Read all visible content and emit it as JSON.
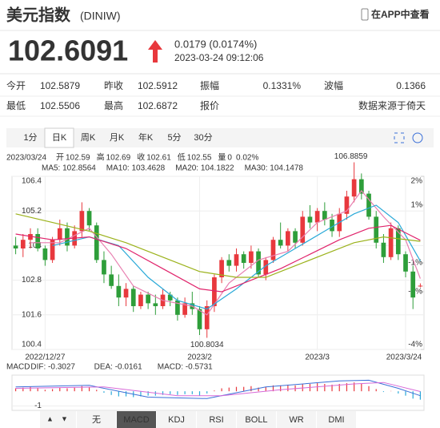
{
  "header": {
    "title": "美元指数",
    "code": "(DINIW)",
    "app_link": "在APP中查看"
  },
  "quote": {
    "price": "102.6091",
    "change": "0.0179 (0.0174%)",
    "time": "2023-03-24 09:12:06"
  },
  "stats": {
    "rows": [
      [
        "今开",
        "102.5879",
        "昨收",
        "102.5912",
        "振幅",
        "0.1331%",
        "波幅",
        "0.1366"
      ],
      [
        "最低",
        "102.5506",
        "最高",
        "102.6872",
        "报价",
        "数据来源于倚天"
      ]
    ]
  },
  "tabs": {
    "items": [
      "1分",
      "日K",
      "周K",
      "月K",
      "年K",
      "5分",
      "30分"
    ],
    "active": 1
  },
  "indicator_tabs": {
    "items": [
      "无",
      "MACD",
      "KDJ",
      "RSI",
      "BOLL",
      "WR",
      "DMI"
    ],
    "active": 1
  },
  "chart_data": {
    "type": "candlestick",
    "info": {
      "date": "2023/03/24",
      "items": [
        {
          "label": "开",
          "value": "102.59",
          "color": "#2e9e3a"
        },
        {
          "label": "高",
          "value": "102.69",
          "color": "#e8383d"
        },
        {
          "label": "收",
          "value": "102.61",
          "color": "#e8383d"
        },
        {
          "label": "低",
          "value": "102.55",
          "color": "#2e9e3a"
        },
        {
          "label": "量",
          "value": "0",
          "color": "#333333"
        }
      ],
      "change": "0.02%"
    },
    "up_color": "#e8383d",
    "down_color": "#2e9e3a",
    "open": [
      104.0,
      103.9,
      104.2,
      104.4,
      103.9,
      103.5,
      104.2,
      104.6,
      104.0,
      104.5,
      105.2,
      104.7,
      103.5,
      103.0,
      102.6,
      102.2,
      102.5,
      101.9,
      102.3,
      102.0,
      101.9,
      102.3,
      102.1,
      101.6,
      102.0,
      101.8,
      101.1,
      101.9,
      102.9,
      103.5,
      103.3,
      103.7,
      103.4,
      103.8,
      103.0,
      103.5,
      104.2,
      104.0,
      104.5,
      104.1,
      105.0,
      104.8,
      105.2,
      104.9,
      104.5,
      105.1,
      105.7,
      106.3,
      105.8,
      105.0,
      104.1,
      103.6,
      104.6,
      103.7,
      103.1,
      102.59
    ],
    "high": [
      104.3,
      104.4,
      104.6,
      104.6,
      104.0,
      104.3,
      104.9,
      104.8,
      104.7,
      105.5,
      105.3,
      104.8,
      103.8,
      103.3,
      103.0,
      102.7,
      102.6,
      102.4,
      102.4,
      102.3,
      102.5,
      102.4,
      102.2,
      102.2,
      102.4,
      101.9,
      102.1,
      103.0,
      103.6,
      103.7,
      103.9,
      103.8,
      104.0,
      103.9,
      103.6,
      104.3,
      104.8,
      104.6,
      104.6,
      105.2,
      105.4,
      105.3,
      105.5,
      105.1,
      105.3,
      105.9,
      106.8859,
      106.5,
      105.9,
      105.2,
      104.4,
      104.8,
      104.7,
      103.8,
      103.3,
      102.69
    ],
    "low": [
      103.7,
      103.6,
      103.9,
      103.8,
      103.3,
      103.4,
      104.0,
      103.8,
      103.9,
      104.3,
      104.5,
      103.4,
      102.7,
      102.5,
      101.9,
      101.9,
      101.7,
      101.8,
      101.8,
      101.6,
      101.8,
      101.9,
      101.4,
      101.5,
      101.6,
      100.9,
      100.8034,
      101.7,
      102.7,
      103.1,
      103.1,
      103.2,
      103.2,
      102.9,
      102.8,
      103.4,
      103.9,
      103.8,
      103.9,
      104.0,
      104.6,
      104.5,
      104.7,
      104.3,
      104.3,
      104.9,
      105.5,
      105.6,
      104.9,
      103.9,
      103.4,
      103.5,
      103.5,
      102.9,
      101.8,
      102.55
    ],
    "close": [
      103.9,
      104.2,
      104.4,
      103.9,
      103.5,
      104.2,
      104.6,
      104.0,
      104.5,
      105.2,
      104.7,
      103.5,
      103.0,
      102.6,
      102.2,
      102.5,
      101.9,
      102.3,
      102.0,
      101.9,
      102.3,
      102.1,
      101.6,
      102.0,
      101.8,
      101.1,
      101.9,
      102.9,
      103.5,
      103.3,
      103.7,
      103.4,
      103.8,
      103.0,
      103.5,
      104.2,
      104.0,
      104.5,
      104.1,
      105.0,
      104.8,
      105.2,
      104.9,
      104.5,
      105.1,
      105.7,
      106.3,
      105.8,
      105.0,
      104.1,
      103.6,
      104.6,
      103.7,
      103.1,
      102.2,
      102.61
    ],
    "series": [
      {
        "name": "MA5: 102.8564",
        "color": "#e87fb0",
        "x": [
          2,
          6,
          10,
          13,
          16,
          20,
          24,
          26,
          29,
          33,
          37,
          41,
          45,
          47,
          50,
          53,
          55
        ],
        "values": [
          104.1,
          104.1,
          104.6,
          103.7,
          102.6,
          102.1,
          101.9,
          101.6,
          102.7,
          103.5,
          103.8,
          104.8,
          105.2,
          105.9,
          105.0,
          104.2,
          102.8564
        ]
      },
      {
        "name": "MA10: 103.4628",
        "color": "#29a9d8",
        "x": [
          5,
          10,
          14,
          18,
          22,
          26,
          30,
          34,
          38,
          42,
          46,
          49,
          52,
          55
        ],
        "values": [
          104.0,
          104.3,
          104.0,
          102.9,
          102.1,
          101.8,
          102.5,
          103.3,
          103.9,
          104.5,
          105.1,
          105.4,
          104.8,
          103.4628
        ]
      },
      {
        "name": "MA20: 104.1822",
        "color": "#e0236b",
        "x": [
          0,
          5,
          10,
          15,
          20,
          25,
          28,
          32,
          36,
          40,
          44,
          48,
          51,
          55
        ],
        "values": [
          104.4,
          104.2,
          104.3,
          103.9,
          103.2,
          102.5,
          102.4,
          102.8,
          103.2,
          103.7,
          104.2,
          104.6,
          104.7,
          104.1822
        ]
      },
      {
        "name": "MA30: 104.1478",
        "color": "#9bb21b",
        "x": [
          0,
          5,
          10,
          15,
          20,
          25,
          30,
          34,
          38,
          42,
          46,
          50,
          55
        ],
        "values": [
          105.1,
          104.8,
          104.5,
          104.1,
          103.6,
          103.1,
          102.9,
          102.9,
          103.3,
          103.7,
          104.1,
          104.3,
          104.1478
        ]
      }
    ],
    "ylim": [
      100.4,
      106.4
    ],
    "yticks": [
      106.4,
      105.2,
      104,
      102.8,
      101.6,
      100.4
    ],
    "y2lim": [
      -4,
      2
    ],
    "y2ticks": [
      {
        "value": 2,
        "label": "2%"
      },
      {
        "value": 1,
        "label": "1%"
      },
      {
        "value": -1,
        "label": "-1%"
      },
      {
        "value": -2,
        "label": "-2%"
      },
      {
        "value": -4,
        "label": "-4%"
      }
    ],
    "xticks": [
      {
        "value": 4,
        "label": "2022/12/27"
      },
      {
        "value": 25,
        "label": "2023/2"
      },
      {
        "value": 41,
        "label": "2023/3"
      },
      {
        "value": 53,
        "label": "2023/3/24"
      }
    ],
    "macd": {
      "title": "MACD",
      "ylim": [
        -1.3,
        1.1
      ],
      "yticks": [
        -1
      ],
      "lines": [
        {
          "name": "DIF: -0.3027",
          "color": "#3a6fd8",
          "x": [
            0,
            10,
            18,
            26,
            34,
            44,
            48,
            52,
            55
          ],
          "values": [
            0.3,
            0.4,
            -0.4,
            -0.5,
            0.3,
            0.7,
            0.75,
            0.2,
            -0.3027
          ]
        },
        {
          "name": "DEA: -0.0161",
          "color": "#d86ad8",
          "x": [
            0,
            12,
            22,
            28,
            36,
            46,
            50,
            55
          ],
          "values": [
            0.2,
            0.3,
            -0.3,
            -0.3,
            0.1,
            0.5,
            0.6,
            -0.0161
          ]
        }
      ],
      "histogram": {
        "name": "MACD: -0.5731",
        "values": [
          0.2,
          0.25,
          0.3,
          0.2,
          0.1,
          0.15,
          0.25,
          0.2,
          0.25,
          0.35,
          0.3,
          0.1,
          -0.1,
          -0.25,
          -0.35,
          -0.35,
          -0.4,
          -0.35,
          -0.3,
          -0.3,
          -0.25,
          -0.2,
          -0.25,
          -0.2,
          -0.2,
          -0.3,
          -0.15,
          0.05,
          0.2,
          0.25,
          0.3,
          0.3,
          0.35,
          0.25,
          0.3,
          0.4,
          0.4,
          0.45,
          0.4,
          0.5,
          0.5,
          0.55,
          0.5,
          0.45,
          0.5,
          0.55,
          0.6,
          0.5,
          0.35,
          0.15,
          -0.05,
          0.02,
          -0.15,
          -0.3,
          -0.5,
          -0.5731
        ]
      }
    }
  }
}
